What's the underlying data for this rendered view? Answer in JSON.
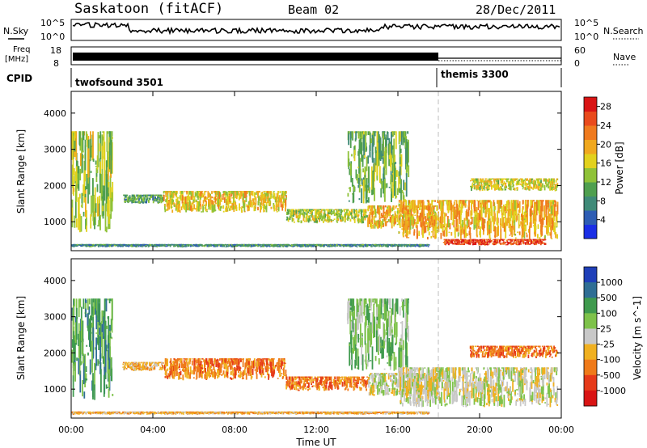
{
  "header": {
    "station": "Saskatoon (fitACF)",
    "beam": "Beam 02",
    "date": "28/Dec/2011"
  },
  "strip_labels": {
    "nsky": "N.Sky",
    "nsearch": "N.Search",
    "freq_line1": "Freq",
    "freq_line2": "[MHz]",
    "nave": "Nave",
    "cpid": "CPID"
  },
  "strip_ticks": {
    "noise_top_left": "10^5",
    "noise_bottom_left": "10^0",
    "noise_top_right": "10^5",
    "noise_bottom_right": "10^0",
    "freq_top": "18",
    "freq_bottom": "8",
    "nave_top": "60",
    "nave_bottom": "0"
  },
  "cpid_modes": [
    {
      "label": "twofsound 3501",
      "start_hour": 0,
      "end_hour": 18
    },
    {
      "label": "themis 3300",
      "start_hour": 18,
      "end_hour": 24
    }
  ],
  "chart_data": [
    {
      "type": "heatmap",
      "parameter": "power",
      "xlabel": "",
      "ylabel": "Slant Range [km]",
      "ylim": [
        200,
        4600
      ],
      "xlim_hours": [
        0,
        24
      ],
      "y_ticks": [
        "1000",
        "2000",
        "3000",
        "4000"
      ],
      "colorbar_title": "Power [dB]",
      "colorbar_ticks": [
        "4",
        "8",
        "12",
        "16",
        "20",
        "24",
        "28"
      ],
      "colorbar_range": [
        0,
        30
      ],
      "colorbar_colors": [
        "#1a2ee6",
        "#2e5db3",
        "#3f8a78",
        "#4f9f4f",
        "#8fc238",
        "#e2d11d",
        "#f0a81f",
        "#ef7a1e",
        "#e94a1c",
        "#d91414"
      ],
      "echo_bands": [
        {
          "t0": 0.0,
          "t1": 2.0,
          "r0": 700,
          "r1": 3500,
          "p": 14
        },
        {
          "t0": 2.5,
          "t1": 4.5,
          "r0": 1500,
          "r1": 1750,
          "p": 10
        },
        {
          "t0": 4.5,
          "t1": 10.5,
          "r0": 1250,
          "r1": 1850,
          "p": 17
        },
        {
          "t0": 10.5,
          "t1": 14.5,
          "r0": 950,
          "r1": 1350,
          "p": 15
        },
        {
          "t0": 13.5,
          "t1": 16.5,
          "r0": 1500,
          "r1": 3500,
          "p": 12
        },
        {
          "t0": 14.5,
          "t1": 18.0,
          "r0": 800,
          "r1": 1450,
          "p": 19
        },
        {
          "t0": 16.0,
          "t1": 23.8,
          "r0": 500,
          "r1": 1600,
          "p": 19
        },
        {
          "t0": 18.2,
          "t1": 23.2,
          "r0": 350,
          "r1": 520,
          "p": 26
        },
        {
          "t0": 19.5,
          "t1": 23.8,
          "r0": 1850,
          "r1": 2200,
          "p": 16
        },
        {
          "t0": 0.0,
          "t1": 17.5,
          "r0": 300,
          "r1": 380,
          "p": 8
        }
      ]
    },
    {
      "type": "heatmap",
      "parameter": "velocity",
      "xlabel": "Time UT",
      "ylabel": "Slant Range [km]",
      "ylim": [
        200,
        4600
      ],
      "xlim_hours": [
        0,
        24
      ],
      "x_ticks": [
        "00:00",
        "04:00",
        "08:00",
        "12:00",
        "16:00",
        "20:00",
        "00:00"
      ],
      "y_ticks": [
        "1000",
        "2000",
        "3000",
        "4000"
      ],
      "colorbar_title": "Velocity [m s^-1]",
      "colorbar_ticks": [
        "1000",
        "500",
        "100",
        "25",
        "-25",
        "-100",
        "-500",
        "-1000"
      ],
      "colorbar_colors": [
        "#1f3fb8",
        "#2f6e94",
        "#3f9a4e",
        "#7ec24a",
        "#c8c8c8",
        "#f0b020",
        "#ef7a1a",
        "#e63a1a",
        "#d91414"
      ],
      "echo_bands": [
        {
          "t0": 0.0,
          "t1": 2.0,
          "r0": 700,
          "r1": 3500,
          "v": 2
        },
        {
          "t0": 2.5,
          "t1": 4.5,
          "r0": 1500,
          "r1": 1750,
          "v": 5
        },
        {
          "t0": 4.5,
          "t1": 10.5,
          "r0": 1250,
          "r1": 1850,
          "v": 6
        },
        {
          "t0": 10.5,
          "t1": 14.5,
          "r0": 950,
          "r1": 1350,
          "v": 6
        },
        {
          "t0": 13.5,
          "t1": 16.5,
          "r0": 1500,
          "r1": 3500,
          "v": 3
        },
        {
          "t0": 14.5,
          "t1": 18.0,
          "r0": 800,
          "r1": 1450,
          "v": 4
        },
        {
          "t0": 16.0,
          "t1": 23.8,
          "r0": 500,
          "r1": 1600,
          "v": 4
        },
        {
          "t0": 19.5,
          "t1": 23.8,
          "r0": 1850,
          "r1": 2200,
          "v": 6
        },
        {
          "t0": 0.0,
          "t1": 17.5,
          "r0": 300,
          "r1": 380,
          "v": 5
        }
      ]
    }
  ]
}
